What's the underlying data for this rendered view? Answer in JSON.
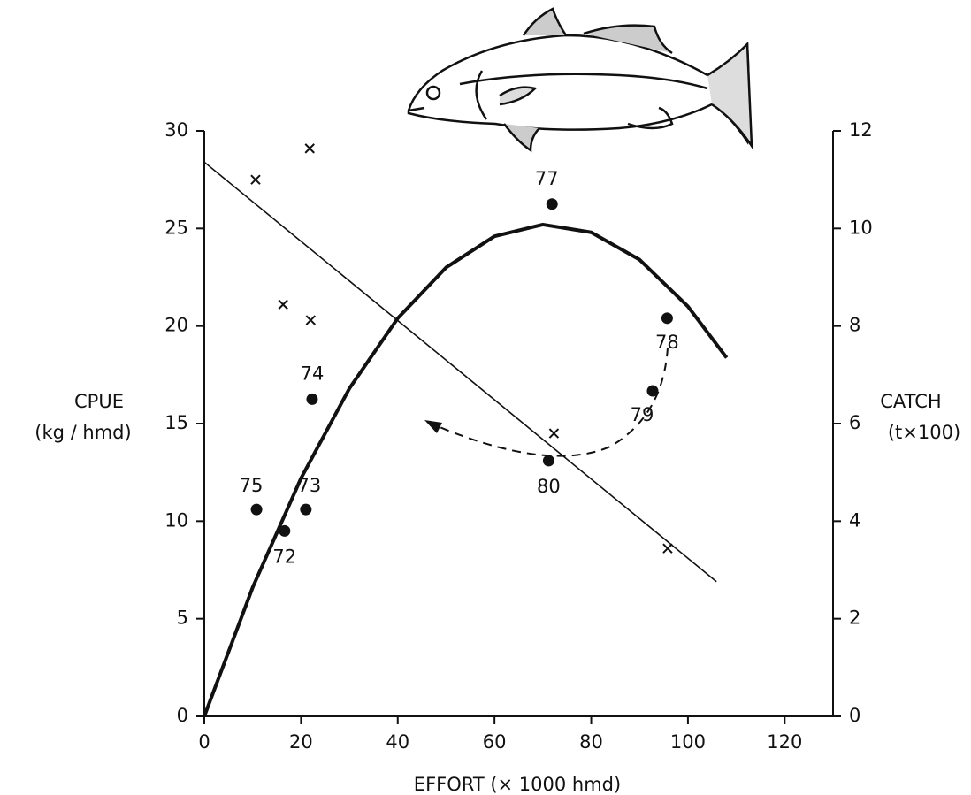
{
  "chart_data": {
    "type": "scatter",
    "x_label": "EFFORT (× 1000 hmd)",
    "y_label": [
      "CPUE",
      "(kg / hmd)"
    ],
    "y2_label": [
      "CATCH",
      "(t×100)"
    ],
    "xlim": [
      0,
      130
    ],
    "xticks": [
      0,
      20,
      40,
      60,
      80,
      100,
      120
    ],
    "ylim": [
      0,
      30
    ],
    "yticks": [
      0,
      5,
      10,
      15,
      20,
      25,
      30
    ],
    "y2lim": [
      0,
      12
    ],
    "y2ticks": [
      0,
      2,
      4,
      6,
      8,
      10,
      12
    ],
    "color": "#111111",
    "series": [
      {
        "kind": "scatter",
        "marker": "x",
        "x": [
          10.6,
          21.8,
          16.3,
          22,
          72.3,
          95.8
        ],
        "values": [
          27.5,
          29.1,
          21.1,
          20.3,
          14.5,
          8.6
        ]
      },
      {
        "kind": "line",
        "x": [
          0,
          105.9
        ],
        "values": [
          28.4,
          6.9
        ]
      },
      {
        "kind": "scatter",
        "marker": "dot",
        "axis": "y2",
        "x": [
          16.6,
          10.8,
          21,
          22.3,
          71.9,
          95.7,
          92.7,
          71.2
        ],
        "values": [
          3.8,
          4.24,
          4.24,
          6.5,
          10.5,
          8.16,
          6.67,
          5.24
        ],
        "labels": [
          "72",
          "75",
          "73",
          "74",
          "77",
          "78",
          "79",
          "80"
        ]
      },
      {
        "kind": "line",
        "axis": "y2",
        "thick": true,
        "x": [
          0,
          10,
          20,
          30,
          40,
          50,
          60,
          70,
          80,
          90,
          100,
          108
        ],
        "values": [
          0,
          2.64,
          4.88,
          6.72,
          8.16,
          9.2,
          9.84,
          10.08,
          9.92,
          9.36,
          8.4,
          7.35
        ]
      }
    ]
  }
}
